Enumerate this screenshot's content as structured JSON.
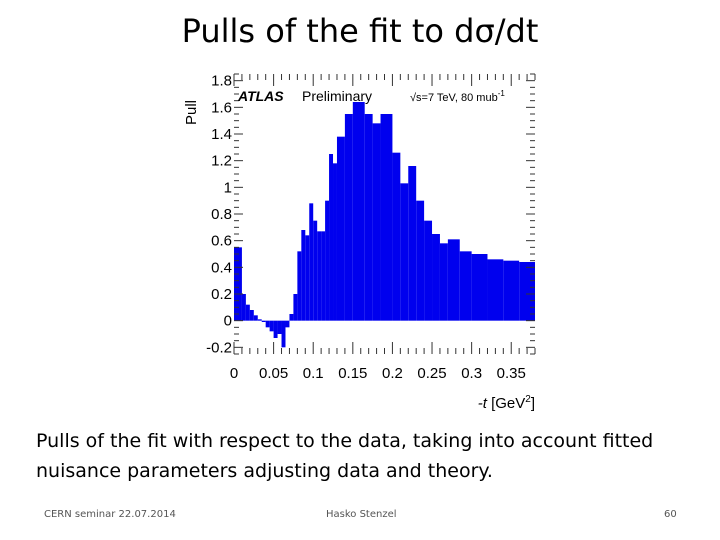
{
  "slide": {
    "title": "Pulls of the fit to dσ/dt",
    "caption": "Pulls of the fit with respect to the data, taking into account fitted nuisance parameters adjusting data and theory.",
    "footer_left": "CERN seminar 22.07.2014",
    "footer_center": "Hasko Stenzel",
    "footer_right": "60"
  },
  "chart_data": {
    "type": "bar",
    "style": "histogram",
    "color": "#0000ee",
    "xlabel_prefix": "-t",
    "xlabel_unit": "[GeV",
    "xlabel_exp": "2",
    "xlabel_close": "]",
    "ylabel": "Pull",
    "xlim": [
      0,
      0.38
    ],
    "ylim": [
      -0.25,
      1.85
    ],
    "xticks": [
      0,
      0.05,
      0.1,
      0.15,
      0.2,
      0.25,
      0.3,
      0.35
    ],
    "xtick_labels": [
      "0",
      "0.05",
      "0.1",
      "0.15",
      "0.2",
      "0.25",
      "0.3",
      "0.35"
    ],
    "yticks": [
      -0.2,
      0,
      0.2,
      0.4,
      0.6,
      0.8,
      1,
      1.2,
      1.4,
      1.6,
      1.8
    ],
    "ytick_labels": [
      "-0.2",
      "0",
      "0.2",
      "0.4",
      "0.6",
      "0.8",
      "1",
      "1.2",
      "1.4",
      "1.6",
      "1.8"
    ],
    "annotation_atlas": "ATLAS",
    "annotation_prelim": "Preliminary",
    "annotation_energy": "√s=7 TeV, 80 mub",
    "annotation_energy_exp": "-1",
    "bins": [
      {
        "lo": 0.0,
        "hi": 0.01,
        "value": 0.55
      },
      {
        "lo": 0.01,
        "hi": 0.015,
        "value": 0.2
      },
      {
        "lo": 0.015,
        "hi": 0.02,
        "value": 0.12
      },
      {
        "lo": 0.02,
        "hi": 0.025,
        "value": 0.08
      },
      {
        "lo": 0.025,
        "hi": 0.03,
        "value": 0.04
      },
      {
        "lo": 0.03,
        "hi": 0.035,
        "value": 0.01
      },
      {
        "lo": 0.035,
        "hi": 0.04,
        "value": -0.01
      },
      {
        "lo": 0.04,
        "hi": 0.045,
        "value": -0.05
      },
      {
        "lo": 0.045,
        "hi": 0.05,
        "value": -0.08
      },
      {
        "lo": 0.05,
        "hi": 0.055,
        "value": -0.13
      },
      {
        "lo": 0.055,
        "hi": 0.06,
        "value": -0.1
      },
      {
        "lo": 0.06,
        "hi": 0.065,
        "value": -0.2
      },
      {
        "lo": 0.065,
        "hi": 0.07,
        "value": -0.05
      },
      {
        "lo": 0.07,
        "hi": 0.075,
        "value": 0.05
      },
      {
        "lo": 0.075,
        "hi": 0.08,
        "value": 0.2
      },
      {
        "lo": 0.08,
        "hi": 0.085,
        "value": 0.52
      },
      {
        "lo": 0.085,
        "hi": 0.09,
        "value": 0.68
      },
      {
        "lo": 0.09,
        "hi": 0.095,
        "value": 0.64
      },
      {
        "lo": 0.095,
        "hi": 0.1,
        "value": 0.88
      },
      {
        "lo": 0.1,
        "hi": 0.105,
        "value": 0.75
      },
      {
        "lo": 0.105,
        "hi": 0.11,
        "value": 0.67
      },
      {
        "lo": 0.11,
        "hi": 0.115,
        "value": 0.67
      },
      {
        "lo": 0.115,
        "hi": 0.12,
        "value": 0.9
      },
      {
        "lo": 0.12,
        "hi": 0.125,
        "value": 1.25
      },
      {
        "lo": 0.125,
        "hi": 0.13,
        "value": 1.18
      },
      {
        "lo": 0.13,
        "hi": 0.14,
        "value": 1.38
      },
      {
        "lo": 0.14,
        "hi": 0.15,
        "value": 1.55
      },
      {
        "lo": 0.15,
        "hi": 0.165,
        "value": 1.64
      },
      {
        "lo": 0.165,
        "hi": 0.175,
        "value": 1.55
      },
      {
        "lo": 0.175,
        "hi": 0.185,
        "value": 1.48
      },
      {
        "lo": 0.185,
        "hi": 0.2,
        "value": 1.55
      },
      {
        "lo": 0.2,
        "hi": 0.21,
        "value": 1.26
      },
      {
        "lo": 0.21,
        "hi": 0.22,
        "value": 1.03
      },
      {
        "lo": 0.22,
        "hi": 0.23,
        "value": 1.16
      },
      {
        "lo": 0.23,
        "hi": 0.24,
        "value": 0.9
      },
      {
        "lo": 0.24,
        "hi": 0.25,
        "value": 0.75
      },
      {
        "lo": 0.25,
        "hi": 0.26,
        "value": 0.65
      },
      {
        "lo": 0.26,
        "hi": 0.27,
        "value": 0.58
      },
      {
        "lo": 0.27,
        "hi": 0.285,
        "value": 0.61
      },
      {
        "lo": 0.285,
        "hi": 0.3,
        "value": 0.52
      },
      {
        "lo": 0.3,
        "hi": 0.32,
        "value": 0.5
      },
      {
        "lo": 0.32,
        "hi": 0.34,
        "value": 0.46
      },
      {
        "lo": 0.34,
        "hi": 0.36,
        "value": 0.45
      },
      {
        "lo": 0.36,
        "hi": 0.38,
        "value": 0.44
      }
    ]
  }
}
